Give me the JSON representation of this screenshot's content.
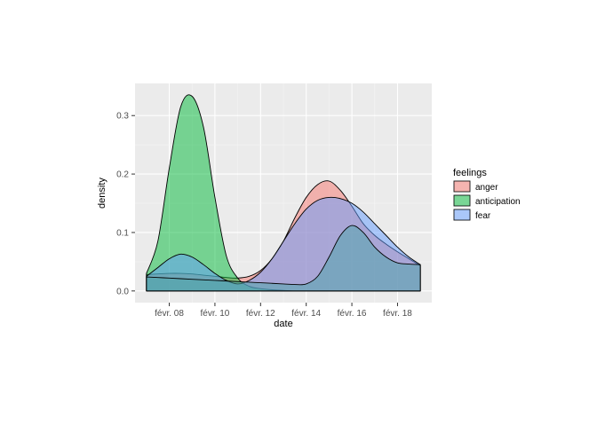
{
  "chart_data": {
    "type": "area",
    "xlabel": "date",
    "ylabel": "density",
    "xlim": [
      "2016-02-06 12:00",
      "2016-02-19 12:00"
    ],
    "ylim": [
      -0.02,
      0.355
    ],
    "x_ticks": [
      {
        "date": "2016-02-08",
        "label": "févr. 08"
      },
      {
        "date": "2016-02-10",
        "label": "févr. 10"
      },
      {
        "date": "2016-02-12",
        "label": "févr. 12"
      },
      {
        "date": "2016-02-14",
        "label": "févr. 14"
      },
      {
        "date": "2016-02-16",
        "label": "févr. 16"
      },
      {
        "date": "2016-02-18",
        "label": "févr. 18"
      }
    ],
    "y_ticks": [
      0.0,
      0.1,
      0.2,
      0.3
    ],
    "y_tick_labels": [
      "0.0",
      "0.1",
      "0.2",
      "0.3"
    ],
    "grid": true,
    "legend_position": "right",
    "legend_title": "feelings",
    "series": [
      {
        "name": "anger",
        "color": "#F8766D",
        "x": [
          "2016-02-07",
          "2016-02-07 12:00",
          "2016-02-08",
          "2016-02-08 12:00",
          "2016-02-09",
          "2016-02-09 12:00",
          "2016-02-10",
          "2016-02-10 12:00",
          "2016-02-11",
          "2016-02-11 12:00",
          "2016-02-12",
          "2016-02-12 12:00",
          "2016-02-13",
          "2016-02-13 12:00",
          "2016-02-14",
          "2016-02-14 12:00",
          "2016-02-15",
          "2016-02-15 12:00",
          "2016-02-16",
          "2016-02-16 12:00",
          "2016-02-17",
          "2016-02-17 12:00",
          "2016-02-18",
          "2016-02-18 12:00",
          "2016-02-19"
        ],
        "values": [
          0.028,
          0.029,
          0.03,
          0.03,
          0.029,
          0.027,
          0.025,
          0.023,
          0.022,
          0.025,
          0.035,
          0.055,
          0.085,
          0.125,
          0.16,
          0.182,
          0.188,
          0.172,
          0.145,
          0.115,
          0.095,
          0.08,
          0.067,
          0.055,
          0.043
        ]
      },
      {
        "name": "anticipation",
        "color": "#00BA38",
        "x": [
          "2016-02-07",
          "2016-02-07 12:00",
          "2016-02-08",
          "2016-02-08 12:00",
          "2016-02-09",
          "2016-02-09 12:00",
          "2016-02-10",
          "2016-02-10 12:00",
          "2016-02-11",
          "2016-02-11 12:00",
          "2016-02-12",
          "2016-02-12 12:00",
          "2016-02-13",
          "2016-02-13 12:00",
          "2016-02-14",
          "2016-02-14 12:00",
          "2016-02-15",
          "2016-02-15 12:00",
          "2016-02-16",
          "2016-02-16 12:00",
          "2016-02-17",
          "2016-02-17 12:00",
          "2016-02-18",
          "2016-02-18 12:00",
          "2016-02-19"
        ],
        "values": [
          0.03,
          0.085,
          0.21,
          0.315,
          0.333,
          0.28,
          0.16,
          0.06,
          0.022,
          0.008,
          0.004,
          0.002,
          0.001,
          0.0,
          0.0,
          0.0,
          0.0,
          0.0,
          0.0,
          0.0,
          0.0,
          0.0,
          0.0,
          0.0,
          0.0
        ]
      },
      {
        "name": "fear",
        "color": "#619CFF",
        "x": [
          "2016-02-07",
          "2016-02-07 12:00",
          "2016-02-08",
          "2016-02-08 12:00",
          "2016-02-09",
          "2016-02-09 12:00",
          "2016-02-10",
          "2016-02-10 12:00",
          "2016-02-11",
          "2016-02-11 12:00",
          "2016-02-12",
          "2016-02-12 12:00",
          "2016-02-13",
          "2016-02-13 12:00",
          "2016-02-14",
          "2016-02-14 12:00",
          "2016-02-15",
          "2016-02-15 12:00",
          "2016-02-16",
          "2016-02-16 12:00",
          "2016-02-17",
          "2016-02-17 12:00",
          "2016-02-18",
          "2016-02-18 12:00",
          "2016-02-19"
        ],
        "values": [
          0.025,
          0.04,
          0.055,
          0.063,
          0.058,
          0.045,
          0.03,
          0.018,
          0.012,
          0.018,
          0.032,
          0.055,
          0.085,
          0.115,
          0.14,
          0.155,
          0.16,
          0.158,
          0.15,
          0.135,
          0.115,
          0.095,
          0.075,
          0.058,
          0.045
        ]
      },
      {
        "name": "",
        "color": "#4BA3A8",
        "x": [
          "2016-02-07",
          "2016-02-07 12:00",
          "2016-02-08",
          "2016-02-08 12:00",
          "2016-02-09",
          "2016-02-09 12:00",
          "2016-02-10",
          "2016-02-10 12:00",
          "2016-02-11",
          "2016-02-11 12:00",
          "2016-02-12",
          "2016-02-12 12:00",
          "2016-02-13",
          "2016-02-13 12:00",
          "2016-02-14",
          "2016-02-14 12:00",
          "2016-02-15",
          "2016-02-15 12:00",
          "2016-02-16",
          "2016-02-16 12:00",
          "2016-02-17",
          "2016-02-17 12:00",
          "2016-02-18",
          "2016-02-18 12:00",
          "2016-02-19"
        ],
        "values": [
          0.024,
          0.023,
          0.022,
          0.021,
          0.02,
          0.019,
          0.018,
          0.017,
          0.016,
          0.015,
          0.014,
          0.013,
          0.012,
          0.011,
          0.012,
          0.025,
          0.058,
          0.095,
          0.112,
          0.1,
          0.075,
          0.058,
          0.048,
          0.046,
          0.045
        ]
      }
    ]
  }
}
